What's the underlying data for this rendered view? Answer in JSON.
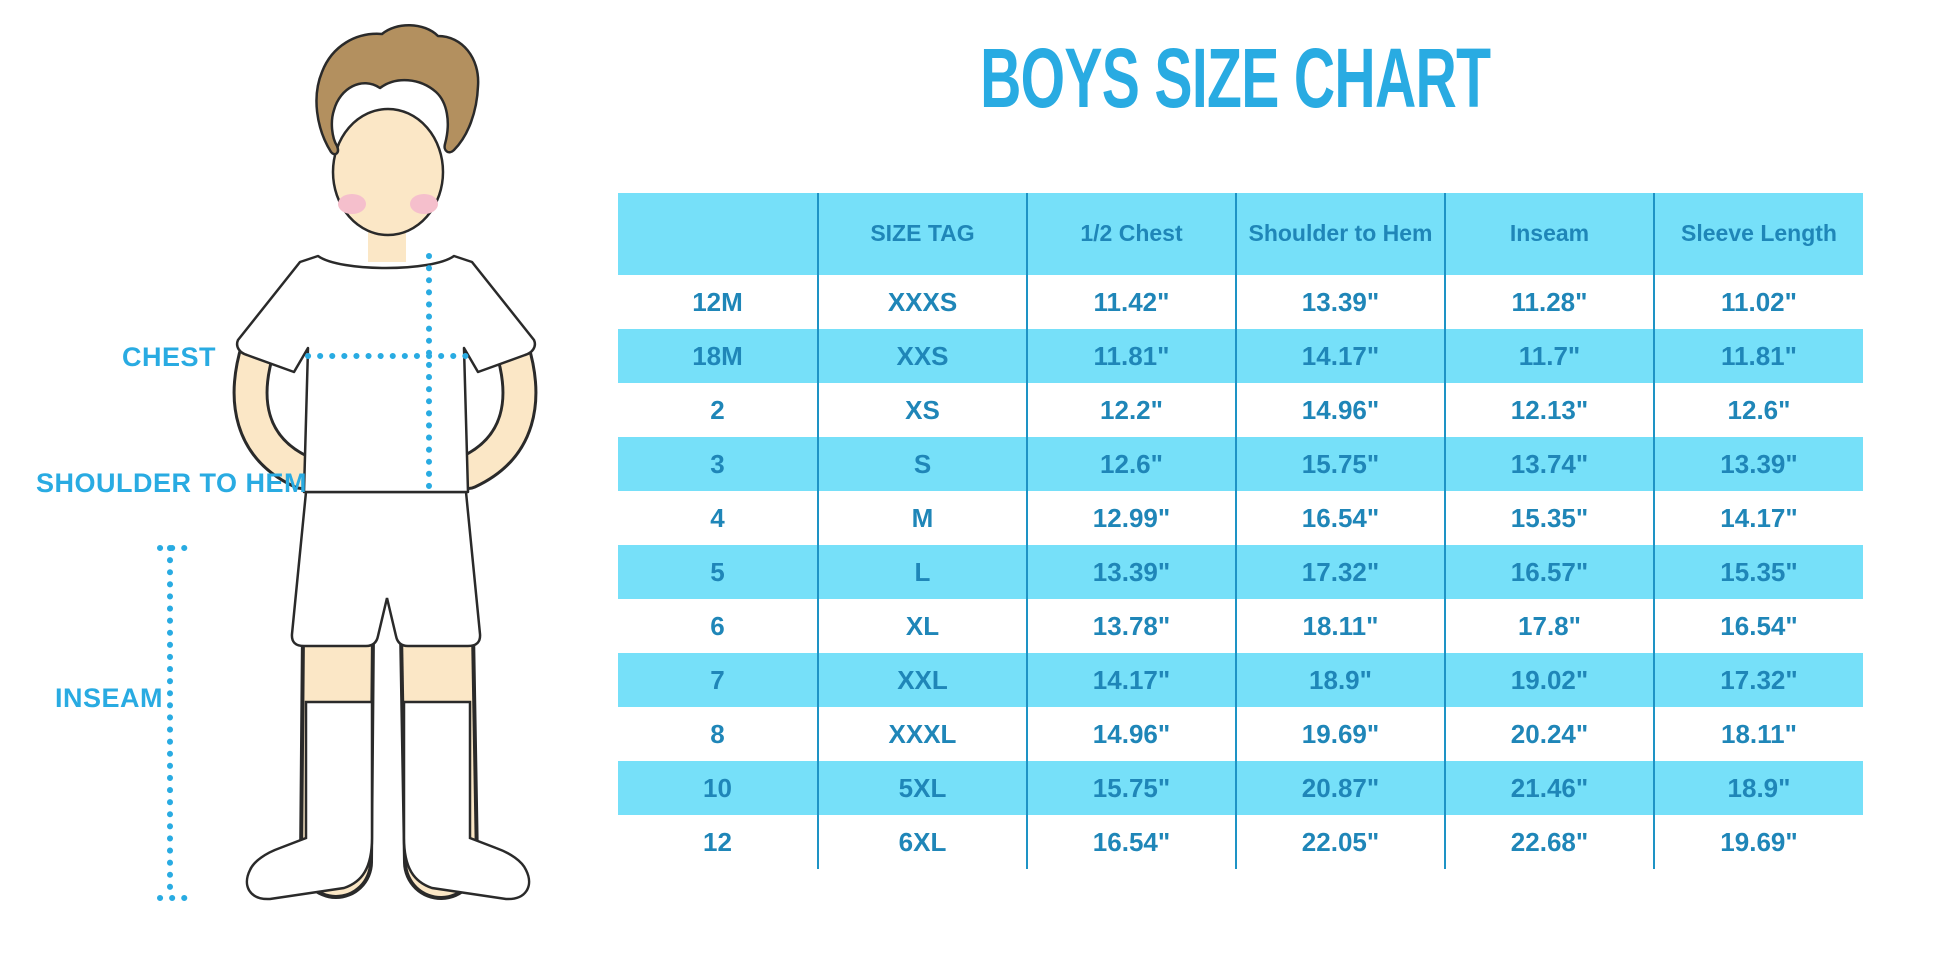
{
  "page": {
    "title": "BOYS SIZE CHART"
  },
  "diagram": {
    "labels": {
      "chest": "CHEST",
      "shoulder_to_hem": "SHOULDER TO HEM",
      "inseam": "INSEAM"
    }
  },
  "chart_data": {
    "type": "table",
    "title": "BOYS SIZE CHART",
    "units": "inches",
    "columns": [
      "",
      "SIZE TAG",
      "1/2 Chest",
      "Shoulder to Hem",
      "Inseam",
      "Sleeve Length"
    ],
    "rows": [
      [
        "12M",
        "XXXS",
        "11.42\"",
        "13.39\"",
        "11.28\"",
        "11.02\""
      ],
      [
        "18M",
        "XXS",
        "11.81\"",
        "14.17\"",
        "11.7\"",
        "11.81\""
      ],
      [
        "2",
        "XS",
        "12.2\"",
        "14.96\"",
        "12.13\"",
        "12.6\""
      ],
      [
        "3",
        "S",
        "12.6\"",
        "15.75\"",
        "13.74\"",
        "13.39\""
      ],
      [
        "4",
        "M",
        "12.99\"",
        "16.54\"",
        "15.35\"",
        "14.17\""
      ],
      [
        "5",
        "L",
        "13.39\"",
        "17.32\"",
        "16.57\"",
        "15.35\""
      ],
      [
        "6",
        "XL",
        "13.78\"",
        "18.11\"",
        "17.8\"",
        "16.54\""
      ],
      [
        "7",
        "XXL",
        "14.17\"",
        "18.9\"",
        "19.02\"",
        "17.32\""
      ],
      [
        "8",
        "XXXL",
        "14.96\"",
        "19.69\"",
        "20.24\"",
        "18.11\""
      ],
      [
        "10",
        "5XL",
        "15.75\"",
        "20.87\"",
        "21.46\"",
        "18.9\""
      ],
      [
        "12",
        "6XL",
        "16.54\"",
        "22.05\"",
        "22.68\"",
        "19.69\""
      ]
    ],
    "layout_hints": {
      "header_fill": "#76E0F9",
      "stripe_fill": "#76E0F9",
      "striping": "even data rows filled cyan, odd rows white",
      "separator_color": "#1E93C5",
      "text_color": "#1F86B8",
      "title_color": "#29ABE2"
    }
  },
  "colors": {
    "accent_blue": "#29ABE2",
    "table_text_blue": "#1F86B8",
    "stripe_cyan": "#76E0F9",
    "separator_blue": "#1E93C5",
    "skin": "#FBE7C6",
    "hair": "#B3905F",
    "blush": "#F5BFCC",
    "outline": "#2A2A2A"
  }
}
